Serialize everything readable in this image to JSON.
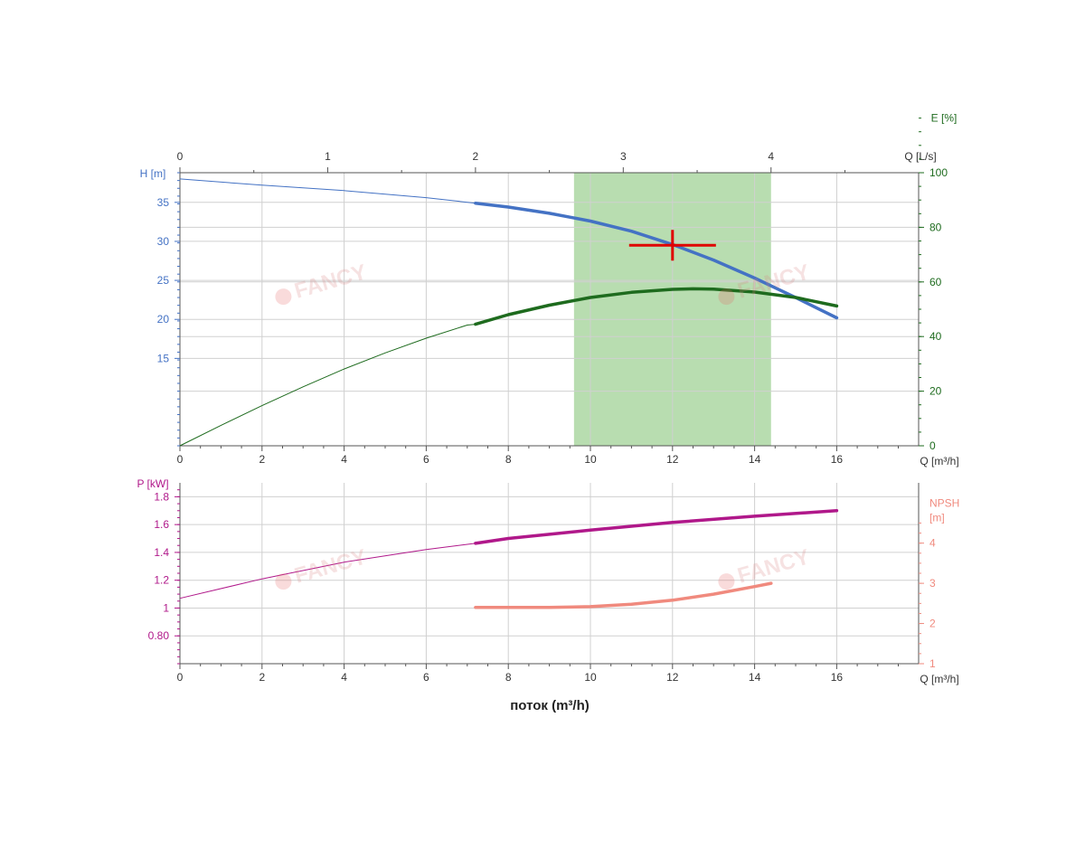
{
  "colors": {
    "head": "#4472C4",
    "efficiency": "#1E6B1E",
    "power": "#B0188A",
    "npsh": "#F08A7E",
    "band": "#B8DDB0",
    "operating_point": "#E00000",
    "grid": "#D0D0D0",
    "frame": "#555555",
    "text": "#333333"
  },
  "watermark": "FANCY",
  "chart_data": [
    {
      "type": "line",
      "name": "head-efficiency",
      "x_label_bottom": "Q [m³/h]",
      "x_label_top": "Q [L/s]",
      "xlim": [
        0,
        18
      ],
      "x_ticks": [
        0,
        2,
        4,
        6,
        8,
        10,
        12,
        14,
        16
      ],
      "x_top_ticks": [
        0,
        1,
        2,
        3,
        4
      ],
      "x_top_factor": 3.6,
      "y_left_label": "H [m]",
      "y_left_lim": [
        3.8,
        38.8
      ],
      "y_left_ticks": [
        15,
        20,
        25,
        30,
        35
      ],
      "y_right_label": "E [%]",
      "y_right_lim": [
        0,
        100
      ],
      "y_right_ticks": [
        0,
        20,
        40,
        60,
        80,
        100
      ],
      "grid": true,
      "band": {
        "x_from": 9.6,
        "x_to": 14.4
      },
      "operating_point": {
        "x": 12,
        "y": 29.5
      },
      "series": [
        {
          "name": "H",
          "axis": "left",
          "x": [
            0,
            2,
            4,
            6,
            7.2,
            8,
            9,
            10,
            11,
            12,
            13,
            14,
            15,
            16
          ],
          "y": [
            38,
            37.2,
            36.5,
            35.6,
            34.9,
            34.4,
            33.6,
            32.6,
            31.3,
            29.6,
            27.6,
            25.3,
            22.8,
            20.2
          ],
          "bold_from": 7.2
        },
        {
          "name": "E",
          "axis": "right",
          "x": [
            0,
            1,
            2,
            3,
            4,
            5,
            6,
            7,
            7.2,
            8,
            9,
            10,
            11,
            12,
            12.5,
            13,
            14,
            15,
            16
          ],
          "y": [
            0,
            7.5,
            14.7,
            21.6,
            28.1,
            34,
            39.4,
            44.2,
            44.5,
            48,
            51.5,
            54.3,
            56.2,
            57.3,
            57.5,
            57.4,
            56.3,
            54.3,
            51.2
          ],
          "bold_from": 7.2
        }
      ]
    },
    {
      "type": "line",
      "name": "power-npsh",
      "x_label_bottom": "Q [m³/h]",
      "xlabel": "поток (m³/h)",
      "xlim": [
        0,
        18
      ],
      "x_ticks": [
        0,
        2,
        4,
        6,
        8,
        10,
        12,
        14,
        16
      ],
      "y_left_label": "P [kW]",
      "y_left_lim": [
        0.6,
        1.9
      ],
      "y_left_ticks": [
        0.8,
        1,
        1.2,
        1.4,
        1.6,
        1.8
      ],
      "y_left_tick_labels": [
        "0.80",
        "1",
        "1.2",
        "1.4",
        "1.6",
        "1.8"
      ],
      "y_right_label": "NPSH\n[m]",
      "y_right_lim": [
        1,
        5.5
      ],
      "y_right_ticks": [
        1,
        2,
        3,
        4
      ],
      "grid": true,
      "series": [
        {
          "name": "P",
          "axis": "left",
          "x": [
            0,
            2,
            4,
            6,
            7.2,
            8,
            10,
            12,
            14,
            16
          ],
          "y": [
            1.07,
            1.21,
            1.33,
            1.42,
            1.465,
            1.5,
            1.56,
            1.615,
            1.66,
            1.7
          ],
          "bold_from": 7.2
        },
        {
          "name": "NPSH",
          "axis": "right",
          "x": [
            7.2,
            8,
            9,
            10,
            11,
            12,
            13,
            14,
            14.4
          ],
          "y": [
            2.4,
            2.4,
            2.4,
            2.42,
            2.48,
            2.58,
            2.73,
            2.92,
            3.0
          ],
          "bold_from": 7.2
        }
      ]
    }
  ]
}
